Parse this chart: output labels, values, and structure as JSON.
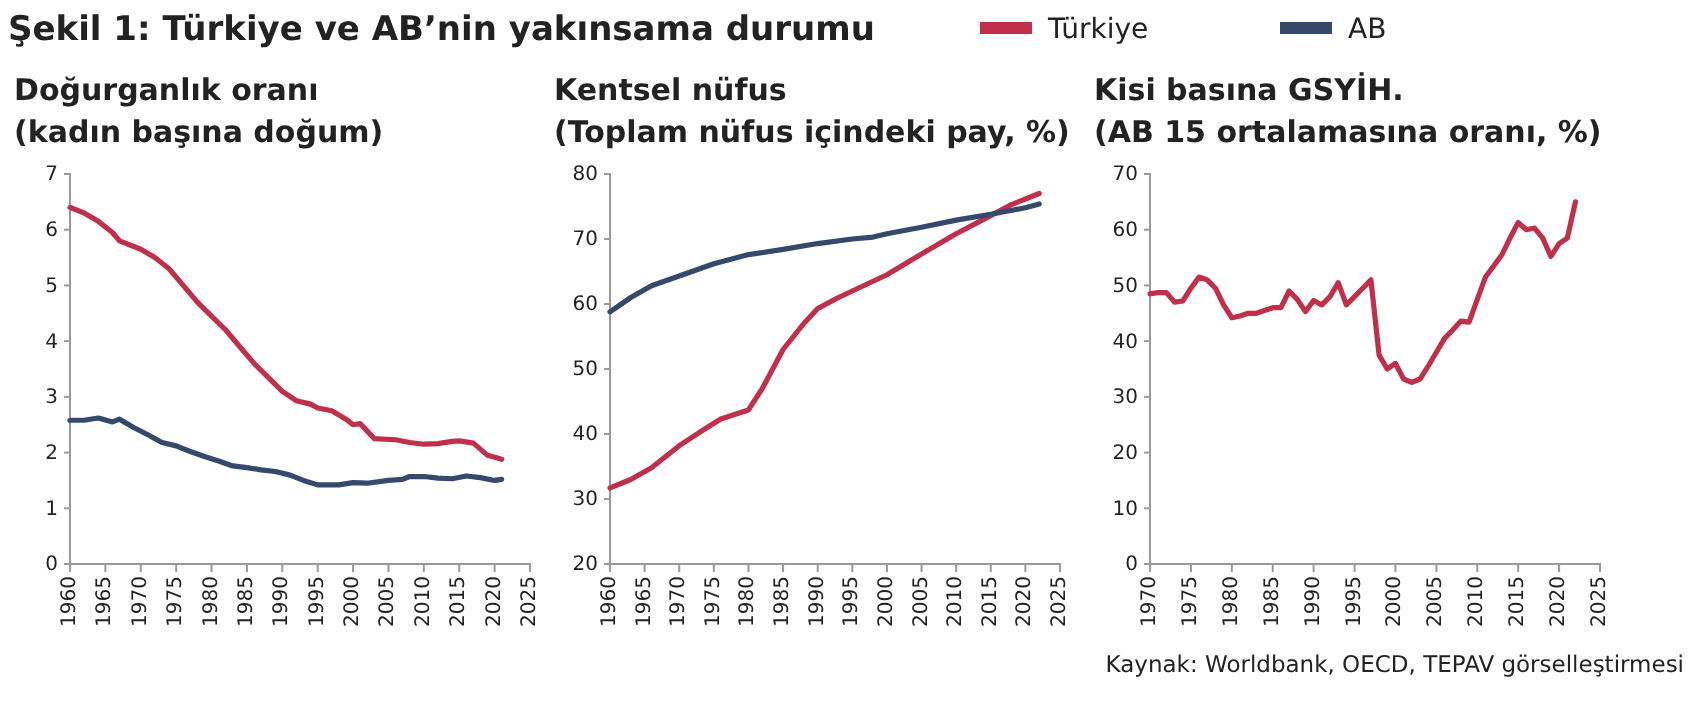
{
  "chart_data": [
    {
      "type": "line",
      "title": "Doğurganlık oranı\n(kadın başına doğum)",
      "annotations": [
        "Şekil 1: Türkiye ve AB’nin yakınsama durumu"
      ],
      "legend": "top",
      "grid": false,
      "marker": "none",
      "line_style": "solid",
      "xlim": [
        1960,
        2025
      ],
      "xticks": [
        1960,
        1965,
        1970,
        1975,
        1980,
        1985,
        1990,
        1995,
        2000,
        2005,
        2010,
        2015,
        2020,
        2025
      ],
      "ylim": [
        0,
        7
      ],
      "yticks": [
        0,
        1,
        2,
        3,
        4,
        5,
        6,
        7
      ],
      "series": [
        {
          "name": "Türkiye",
          "color": "#c0304a",
          "x": [
            1960,
            1962,
            1964,
            1966,
            1967,
            1970,
            1972,
            1974,
            1976,
            1978,
            1980,
            1982,
            1984,
            1986,
            1988,
            1990,
            1992,
            1994,
            1995,
            1997,
            1999,
            2000,
            2001,
            2003,
            2006,
            2008,
            2010,
            2012,
            2014,
            2015,
            2017,
            2019,
            2021
          ],
          "values": [
            6.4,
            6.3,
            6.15,
            5.95,
            5.8,
            5.65,
            5.5,
            5.3,
            5.0,
            4.7,
            4.45,
            4.2,
            3.9,
            3.6,
            3.35,
            3.1,
            2.93,
            2.87,
            2.8,
            2.75,
            2.6,
            2.5,
            2.52,
            2.25,
            2.23,
            2.18,
            2.15,
            2.16,
            2.2,
            2.21,
            2.17,
            1.95,
            1.88
          ]
        },
        {
          "name": "AB",
          "color": "#34496b",
          "x": [
            1960,
            1962,
            1964,
            1966,
            1967,
            1969,
            1971,
            1973,
            1975,
            1977,
            1979,
            1981,
            1983,
            1985,
            1987,
            1989,
            1991,
            1993,
            1995,
            1998,
            2000,
            2002,
            2005,
            2007,
            2008,
            2010,
            2012,
            2014,
            2016,
            2018,
            2020,
            2021
          ],
          "values": [
            2.58,
            2.58,
            2.62,
            2.55,
            2.6,
            2.45,
            2.32,
            2.18,
            2.12,
            2.02,
            1.93,
            1.85,
            1.76,
            1.73,
            1.69,
            1.66,
            1.6,
            1.5,
            1.42,
            1.42,
            1.46,
            1.45,
            1.5,
            1.52,
            1.57,
            1.57,
            1.54,
            1.53,
            1.58,
            1.55,
            1.5,
            1.52
          ]
        }
      ]
    },
    {
      "type": "line",
      "title": "Kentsel nüfus\n(Toplam nüfus içindeki pay, %)",
      "grid": false,
      "marker": "none",
      "line_style": "solid",
      "xlim": [
        1960,
        2025
      ],
      "xticks": [
        1960,
        1965,
        1970,
        1975,
        1980,
        1985,
        1990,
        1995,
        2000,
        2005,
        2010,
        2015,
        2020,
        2025
      ],
      "ylim": [
        20,
        80
      ],
      "yticks": [
        20,
        30,
        40,
        50,
        60,
        70,
        80
      ],
      "series": [
        {
          "color": "#c0304a",
          "x": [
            1960,
            1963,
            1966,
            1970,
            1973,
            1976,
            1980,
            1982,
            1985,
            1988,
            1990,
            1993,
            1996,
            2000,
            2005,
            2010,
            2015,
            2018,
            2022
          ],
          "values": [
            31.7,
            33,
            34.8,
            38.2,
            40.3,
            42.3,
            43.7,
            47,
            53,
            57,
            59.3,
            61,
            62.5,
            64.5,
            67.7,
            70.8,
            73.6,
            75.3,
            77
          ]
        },
        {
          "color": "#34496b",
          "x": [
            1960,
            1963,
            1966,
            1970,
            1975,
            1980,
            1985,
            1990,
            1995,
            1998,
            2000,
            2005,
            2010,
            2015,
            2020,
            2022
          ],
          "values": [
            58.8,
            61,
            62.8,
            64.3,
            66.2,
            67.6,
            68.4,
            69.3,
            70,
            70.3,
            70.8,
            71.8,
            72.9,
            73.8,
            74.8,
            75.4
          ]
        }
      ]
    },
    {
      "type": "line",
      "title": "Kisi basına GSYİH.\n(AB 15 ortalamasına oranı, %)",
      "annotations": [
        "Kaynak: Worldbank, OECD, TEPAV görselleştirmesi"
      ],
      "grid": false,
      "marker": "none",
      "line_style": "solid",
      "xlim": [
        1970,
        2025
      ],
      "xticks": [
        1970,
        1975,
        1980,
        1985,
        1990,
        1995,
        2000,
        2005,
        2010,
        2015,
        2020,
        2025
      ],
      "ylim": [
        0,
        70
      ],
      "yticks": [
        0,
        10,
        20,
        30,
        40,
        50,
        60,
        70
      ],
      "series": [
        {
          "color": "#c0304a",
          "x": [
            1970,
            1971,
            1972,
            1973,
            1974,
            1975,
            1976,
            1977,
            1978,
            1979,
            1980,
            1981,
            1982,
            1983,
            1984,
            1985,
            1986,
            1987,
            1988,
            1989,
            1990,
            1991,
            1992,
            1993,
            1994,
            1995,
            1996,
            1997,
            1998,
            1999,
            2000,
            2001,
            2002,
            2003,
            2004,
            2005,
            2006,
            2007,
            2008,
            2009,
            2010,
            2011,
            2012,
            2013,
            2014,
            2015,
            2016,
            2017,
            2018,
            2019,
            2020,
            2021,
            2022
          ],
          "values": [
            48.5,
            48.7,
            48.7,
            47,
            47.2,
            49.5,
            51.5,
            51,
            49.5,
            46.5,
            44.2,
            44.5,
            45,
            45,
            45.5,
            46,
            46,
            49,
            47.5,
            45.3,
            47.3,
            46.5,
            48,
            50.5,
            46.5,
            48,
            49.5,
            51,
            37.5,
            35,
            36,
            33.2,
            32.6,
            33.2,
            35.5,
            38,
            40.5,
            42,
            43.6,
            43.4,
            47.5,
            51.5,
            53.5,
            55.5,
            58.5,
            61.3,
            60,
            60.3,
            58.5,
            55.2,
            57.5,
            58.5,
            65
          ]
        }
      ]
    }
  ]
}
